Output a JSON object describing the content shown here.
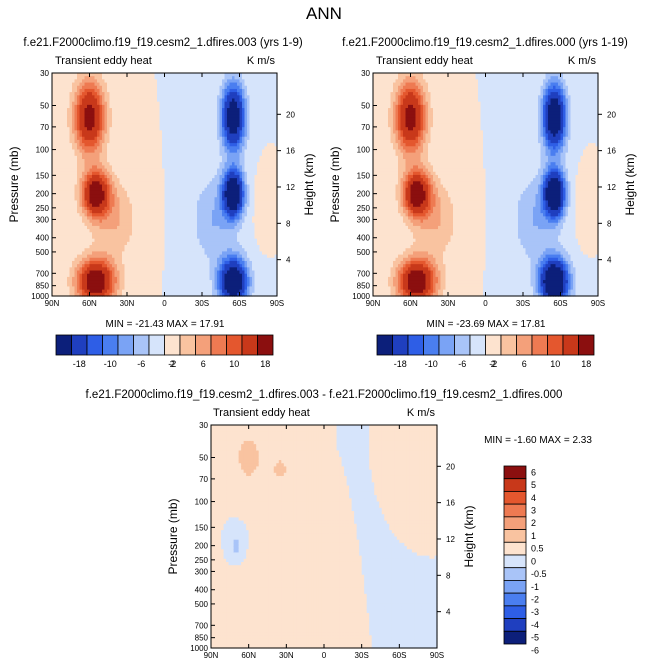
{
  "page": {
    "title": "ANN"
  },
  "colors": {
    "neg": [
      "#0c1f7a",
      "#1f3fbf",
      "#2e5ee6",
      "#4a7ef0",
      "#7aa3f5",
      "#a9c4f8",
      "#d6e4fb"
    ],
    "pos": [
      "#fde3cf",
      "#f9c3a0",
      "#f4a07a",
      "#ee7a52",
      "#e4572e",
      "#c8381a",
      "#8b0f0f"
    ]
  },
  "panels": [
    {
      "title": "f.e21.F2000climo.f19_f19.cesm2_1.dfires.003 (yrs 1-9)",
      "left_label": "Transient eddy heat",
      "right_label": "K m/s",
      "stats": "MIN = -21.43   MAX =  17.91"
    },
    {
      "title": "f.e21.F2000climo.f19_f19.cesm2_1.dfires.000 (yrs 1-19)",
      "left_label": "Transient eddy heat",
      "right_label": "K m/s",
      "stats": "MIN = -23.69   MAX =  17.81"
    },
    {
      "title": "f.e21.F2000climo.f19_f19.cesm2_1.dfires.003 - f.e21.F2000climo.f19_f19.cesm2_1.dfires.000",
      "left_label": "Transient eddy heat",
      "right_label": "K m/s",
      "stats": "MIN = -1.60   MAX =  2.33"
    }
  ],
  "chart_data": [
    {
      "type": "heatmap",
      "ylabel": "Pressure (mb)",
      "y2label": "Height (km)",
      "x_ticks": [
        "90N",
        "60N",
        "30N",
        "0",
        "30S",
        "60S",
        "90S"
      ],
      "x_values": [
        90,
        60,
        30,
        0,
        -30,
        -60,
        -90
      ],
      "y_ticks": [
        30,
        50,
        70,
        100,
        150,
        200,
        250,
        300,
        400,
        500,
        700,
        850,
        1000
      ],
      "y2_ticks": [
        20,
        16,
        12,
        8,
        4
      ],
      "ylim": [
        30,
        1000
      ],
      "y_scale": "log",
      "xlim": [
        90,
        -90
      ],
      "fields": [
        {
          "lat": 60,
          "p": 60,
          "amp": 16,
          "w": 12,
          "h": 0.55
        },
        {
          "lat": 55,
          "p": 200,
          "amp": 17,
          "w": 11,
          "h": 0.35
        },
        {
          "lat": 55,
          "p": 800,
          "amp": 18,
          "w": 15,
          "h": 0.35
        },
        {
          "lat": 40,
          "p": 300,
          "amp": 4,
          "w": 18,
          "h": 0.6
        },
        {
          "lat": -55,
          "p": 60,
          "amp": -19,
          "w": 9,
          "h": 0.5
        },
        {
          "lat": -55,
          "p": 200,
          "amp": -21,
          "w": 8,
          "h": 0.35
        },
        {
          "lat": -55,
          "p": 800,
          "amp": -21,
          "w": 11,
          "h": 0.35
        },
        {
          "lat": -40,
          "p": 300,
          "amp": -4,
          "w": 18,
          "h": 0.7
        },
        {
          "lat": -78,
          "p": 250,
          "amp": 1.5,
          "w": 6,
          "h": 0.4
        }
      ]
    },
    {
      "type": "heatmap",
      "ylabel": "Pressure (mb)",
      "y2label": "Height (km)",
      "x_ticks": [
        "90N",
        "60N",
        "30N",
        "0",
        "30S",
        "60S",
        "90S"
      ],
      "x_values": [
        90,
        60,
        30,
        0,
        -30,
        -60,
        -90
      ],
      "y_ticks": [
        30,
        50,
        70,
        100,
        150,
        200,
        250,
        300,
        400,
        500,
        700,
        850,
        1000
      ],
      "y2_ticks": [
        20,
        16,
        12,
        8,
        4
      ],
      "ylim": [
        30,
        1000
      ],
      "y_scale": "log",
      "xlim": [
        90,
        -90
      ],
      "fields": [
        {
          "lat": 60,
          "p": 60,
          "amp": 16,
          "w": 12,
          "h": 0.55
        },
        {
          "lat": 55,
          "p": 200,
          "amp": 17,
          "w": 11,
          "h": 0.35
        },
        {
          "lat": 55,
          "p": 800,
          "amp": 18,
          "w": 15,
          "h": 0.35
        },
        {
          "lat": 40,
          "p": 300,
          "amp": 4,
          "w": 18,
          "h": 0.6
        },
        {
          "lat": -55,
          "p": 60,
          "amp": -20,
          "w": 9,
          "h": 0.5
        },
        {
          "lat": -55,
          "p": 200,
          "amp": -22,
          "w": 8,
          "h": 0.35
        },
        {
          "lat": -55,
          "p": 800,
          "amp": -23,
          "w": 11,
          "h": 0.35
        },
        {
          "lat": -40,
          "p": 300,
          "amp": -4,
          "w": 18,
          "h": 0.7
        },
        {
          "lat": -78,
          "p": 250,
          "amp": 1.5,
          "w": 6,
          "h": 0.4
        }
      ]
    },
    {
      "type": "heatmap",
      "ylabel": "Pressure (mb)",
      "y2label": "Height (km)",
      "x_ticks": [
        "90N",
        "60N",
        "30N",
        "0",
        "30S",
        "60S",
        "90S"
      ],
      "x_values": [
        90,
        60,
        30,
        0,
        -30,
        -60,
        -90
      ],
      "y_ticks": [
        30,
        50,
        70,
        100,
        150,
        200,
        250,
        300,
        400,
        500,
        700,
        850,
        1000
      ],
      "y2_ticks": [
        20,
        16,
        12,
        8,
        4
      ],
      "ylim": [
        30,
        1000
      ],
      "y_scale": "log",
      "xlim": [
        90,
        -90
      ],
      "fields": [
        {
          "lat": 60,
          "p": 50,
          "amp": 0.9,
          "w": 10,
          "h": 0.35
        },
        {
          "lat": 35,
          "p": 60,
          "amp": 0.6,
          "w": 10,
          "h": 0.3
        },
        {
          "lat": 70,
          "p": 200,
          "amp": -0.8,
          "w": 4,
          "h": 0.15
        },
        {
          "lat": -20,
          "p": 450,
          "amp": 0.5,
          "w": 10,
          "h": 0.7
        },
        {
          "lat": -60,
          "p": 100,
          "amp": 0.4,
          "w": 12,
          "h": 0.5
        },
        {
          "lat": 15,
          "p": 300,
          "amp": 0.4,
          "w": 8,
          "h": 0.9
        },
        {
          "lat": 50,
          "p": 700,
          "amp": 0.3,
          "w": 18,
          "h": 0.6
        },
        {
          "lat": -45,
          "p": 250,
          "amp": -0.3,
          "w": 15,
          "h": 0.7
        }
      ]
    }
  ],
  "colorbars": [
    {
      "orientation": "horizontal",
      "labels": [
        "-18",
        "-10",
        "-6",
        "-2",
        "2",
        "6",
        "10",
        "18"
      ],
      "levels": [
        -18,
        -14,
        -10,
        -8,
        -6,
        -4,
        -2,
        0,
        2,
        4,
        6,
        8,
        10,
        14,
        18
      ]
    },
    {
      "orientation": "horizontal",
      "labels": [
        "-18",
        "-10",
        "-6",
        "-2",
        "2",
        "6",
        "10",
        "18"
      ],
      "levels": [
        -18,
        -14,
        -10,
        -8,
        -6,
        -4,
        -2,
        0,
        2,
        4,
        6,
        8,
        10,
        14,
        18
      ]
    },
    {
      "orientation": "vertical",
      "labels": [
        "6",
        "5",
        "4",
        "3",
        "2",
        "1",
        "0.5",
        "0",
        "-0.5",
        "-1",
        "-2",
        "-3",
        "-4",
        "-5",
        "-6"
      ],
      "levels": [
        -6,
        -5,
        -4,
        -3,
        -2,
        -1,
        -0.5,
        0,
        0.5,
        1,
        2,
        3,
        4,
        5,
        6
      ]
    }
  ]
}
